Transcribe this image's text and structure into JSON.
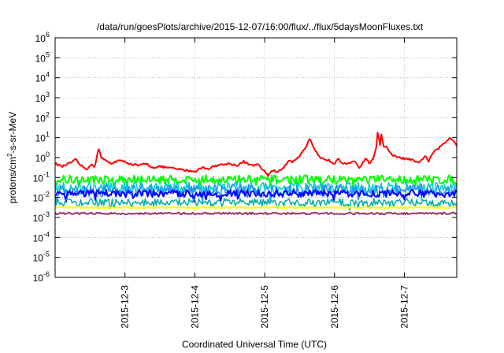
{
  "chart_data": {
    "type": "line",
    "title": "/data/run/goesPlots/archive/2015-12-07/16:00/flux/../flux/5daysMoonFluxes.txt",
    "xlabel": "Coordinated Universal Time (UTC)",
    "ylabel": {
      "pre": "protons/cm",
      "sup": "2",
      "post": "-s-sr-MeV"
    },
    "yscale": "log",
    "ylim_exp": [
      -6,
      6
    ],
    "ytick_exponents": [
      -6,
      -5,
      -4,
      -3,
      -2,
      -1,
      0,
      1,
      2,
      3,
      4,
      5,
      6
    ],
    "ytick_base": "10",
    "x_days_range": [
      2.0,
      7.75
    ],
    "xticks": [
      {
        "label": "2015-12-3",
        "day": 3
      },
      {
        "label": "2015-12-4",
        "day": 4
      },
      {
        "label": "2015-12-5",
        "day": 5
      },
      {
        "label": "2015-12-6",
        "day": 6
      },
      {
        "label": "2015-12-7",
        "day": 7
      }
    ],
    "grid": true,
    "series": [
      {
        "color": "#ff0000",
        "width": 2,
        "noise": 0.05,
        "points": [
          [
            2.0,
            -0.3
          ],
          [
            2.1,
            -0.45
          ],
          [
            2.2,
            -0.3
          ],
          [
            2.3,
            -0.1
          ],
          [
            2.35,
            -0.35
          ],
          [
            2.45,
            -0.6
          ],
          [
            2.5,
            -0.35
          ],
          [
            2.57,
            -0.45
          ],
          [
            2.62,
            0.5
          ],
          [
            2.66,
            0.0
          ],
          [
            2.7,
            -0.1
          ],
          [
            2.8,
            -0.3
          ],
          [
            2.9,
            -0.15
          ],
          [
            3.0,
            -0.2
          ],
          [
            3.1,
            -0.35
          ],
          [
            3.2,
            -0.4
          ],
          [
            3.3,
            -0.3
          ],
          [
            3.4,
            -0.5
          ],
          [
            3.5,
            -0.45
          ],
          [
            3.6,
            -0.5
          ],
          [
            3.7,
            -0.55
          ],
          [
            3.8,
            -0.6
          ],
          [
            3.9,
            -0.65
          ],
          [
            4.0,
            -0.7
          ],
          [
            4.1,
            -0.5
          ],
          [
            4.2,
            -0.55
          ],
          [
            4.3,
            -0.4
          ],
          [
            4.4,
            -0.35
          ],
          [
            4.5,
            -0.3
          ],
          [
            4.6,
            -0.4
          ],
          [
            4.7,
            -0.2
          ],
          [
            4.8,
            -0.4
          ],
          [
            4.9,
            -0.35
          ],
          [
            5.0,
            -0.7
          ],
          [
            5.05,
            -0.9
          ],
          [
            5.1,
            -0.65
          ],
          [
            5.2,
            -0.7
          ],
          [
            5.3,
            -0.4
          ],
          [
            5.35,
            -0.1
          ],
          [
            5.4,
            -0.2
          ],
          [
            5.5,
            0.1
          ],
          [
            5.55,
            0.3
          ],
          [
            5.6,
            0.6
          ],
          [
            5.65,
            0.95
          ],
          [
            5.7,
            0.45
          ],
          [
            5.75,
            0.2
          ],
          [
            5.8,
            -0.05
          ],
          [
            5.9,
            -0.1
          ],
          [
            6.0,
            -0.3
          ],
          [
            6.05,
            0.0
          ],
          [
            6.1,
            -0.25
          ],
          [
            6.2,
            -0.3
          ],
          [
            6.3,
            -0.2
          ],
          [
            6.35,
            -0.5
          ],
          [
            6.4,
            -0.3
          ],
          [
            6.45,
            0.0
          ],
          [
            6.5,
            -0.3
          ],
          [
            6.55,
            -0.1
          ],
          [
            6.6,
            0.6
          ],
          [
            6.62,
            1.3
          ],
          [
            6.65,
            0.6
          ],
          [
            6.67,
            1.2
          ],
          [
            6.7,
            0.6
          ],
          [
            6.75,
            0.5
          ],
          [
            6.8,
            0.2
          ],
          [
            6.85,
            0.1
          ],
          [
            6.9,
            0.0
          ],
          [
            7.0,
            -0.05
          ],
          [
            7.1,
            -0.1
          ],
          [
            7.2,
            -0.3
          ],
          [
            7.3,
            0.1
          ],
          [
            7.35,
            -0.2
          ],
          [
            7.4,
            0.2
          ],
          [
            7.5,
            0.5
          ],
          [
            7.6,
            0.8
          ],
          [
            7.65,
            1.0
          ],
          [
            7.7,
            0.9
          ],
          [
            7.75,
            0.6
          ]
        ]
      },
      {
        "color": "#00ff00",
        "width": 2,
        "noise": 0.22,
        "points": [
          [
            2.0,
            -1.1
          ],
          [
            7.75,
            -1.1
          ]
        ]
      },
      {
        "color": "#00cccc",
        "width": 1.5,
        "noise": 0.28,
        "points": [
          [
            2.0,
            -1.5
          ],
          [
            7.75,
            -1.5
          ]
        ]
      },
      {
        "color": "#1e90ff",
        "width": 1.5,
        "noise": 0.3,
        "points": [
          [
            2.0,
            -1.65
          ],
          [
            7.75,
            -1.65
          ]
        ]
      },
      {
        "color": "#0000ff",
        "width": 2,
        "noise": 0.18,
        "points": [
          [
            2.0,
            -1.8
          ],
          [
            7.75,
            -1.8
          ]
        ]
      },
      {
        "color": "#00aaaa",
        "width": 1.5,
        "noise": 0.2,
        "points": [
          [
            2.0,
            -2.25
          ],
          [
            7.75,
            -2.25
          ]
        ]
      },
      {
        "color": "#ffff00",
        "width": 2,
        "noise": 0.05,
        "points": [
          [
            2.0,
            -2.5
          ],
          [
            7.75,
            -2.5
          ]
        ]
      },
      {
        "color": "#993366",
        "width": 2,
        "noise": 0.05,
        "points": [
          [
            2.0,
            -2.8
          ],
          [
            7.75,
            -2.8
          ]
        ]
      }
    ]
  }
}
